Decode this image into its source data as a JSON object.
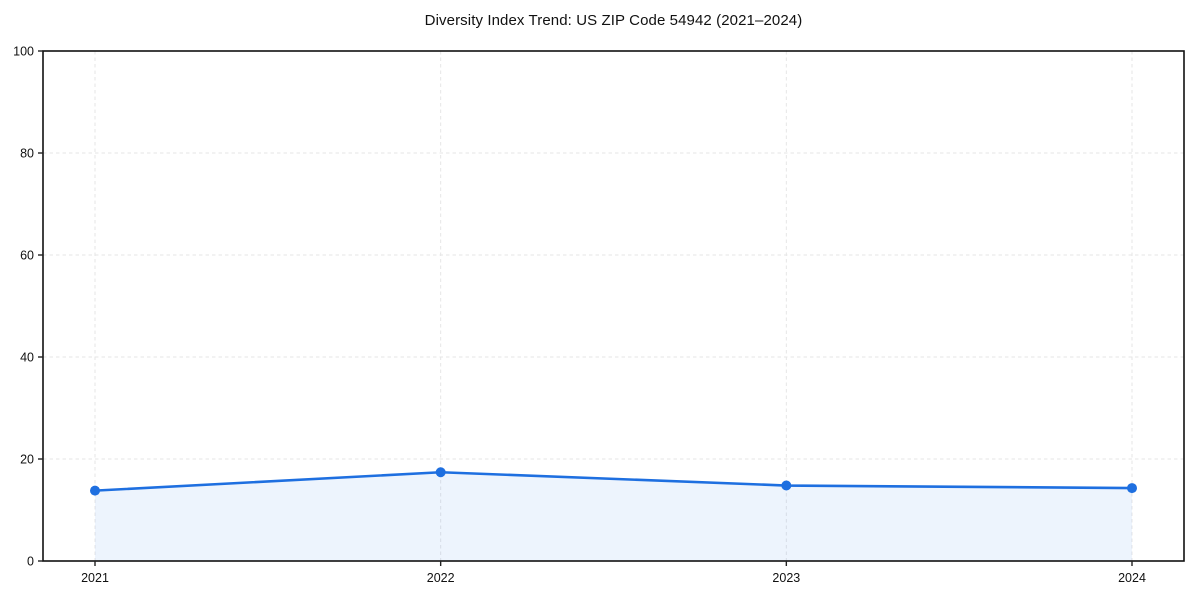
{
  "title": "Diversity Index Trend: US ZIP Code 54942 (2021–2024)",
  "chart_data": {
    "type": "area",
    "title": "Diversity Index Trend: US ZIP Code 54942 (2021–2024)",
    "categories": [
      "2021",
      "2022",
      "2023",
      "2024"
    ],
    "series": [
      {
        "name": "Diversity Index",
        "values": [
          13.8,
          17.4,
          14.8,
          14.3
        ]
      }
    ],
    "xlabel": "",
    "ylabel": "",
    "ylim": [
      0,
      100
    ],
    "yticks": [
      0,
      20,
      40,
      60,
      80,
      100
    ],
    "grid": true,
    "grid_style": "dashed",
    "legend_position": "none",
    "colors": {
      "line": "#1e6fe0",
      "marker": "#1e6fe0",
      "fill": "rgba(30,111,224,0.08)",
      "gridline": "#e6e6e6",
      "frame": "#111111",
      "tick": "#222222",
      "text": "#111111"
    },
    "marker_shape": "circle"
  }
}
